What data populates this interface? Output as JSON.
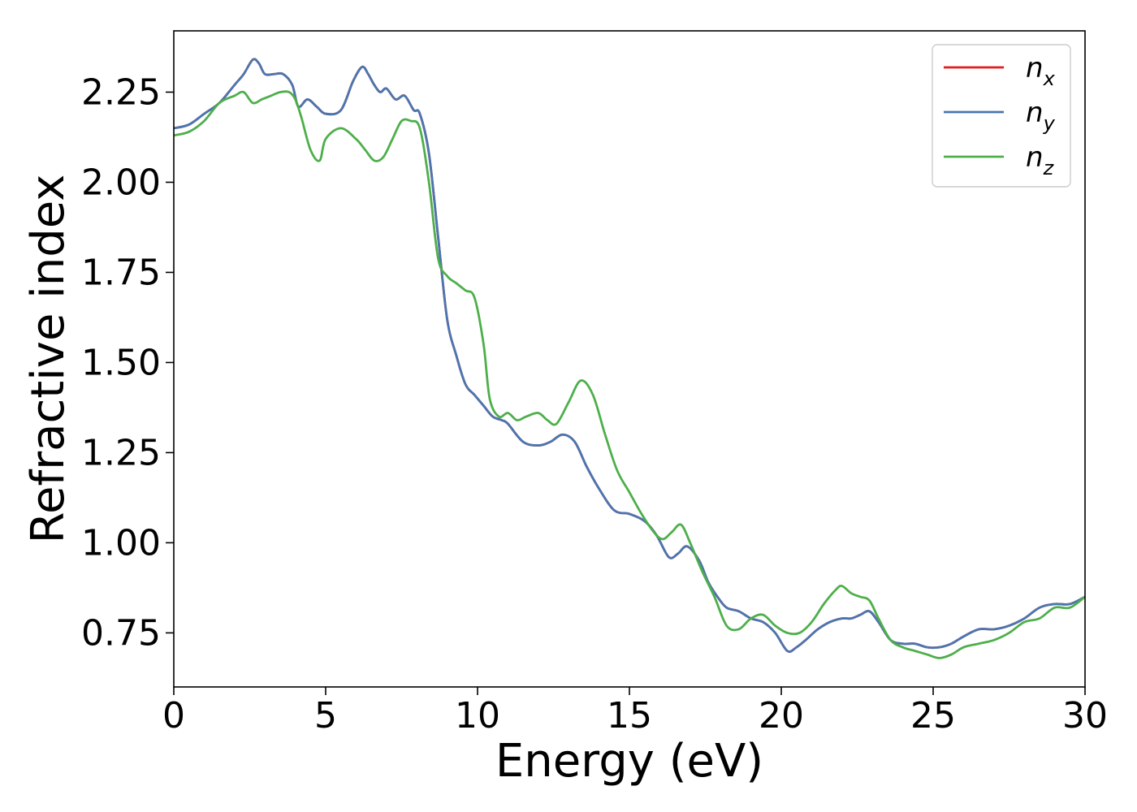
{
  "chart_data": {
    "type": "line",
    "title": "",
    "xlabel": "Energy (eV)",
    "ylabel": "Refractive index",
    "xlim": [
      0,
      30
    ],
    "ylim": [
      0.6,
      2.42
    ],
    "xticks": [
      0,
      5,
      10,
      15,
      20,
      25,
      30
    ],
    "xtick_labels": [
      "0",
      "5",
      "10",
      "15",
      "20",
      "25",
      "30"
    ],
    "yticks": [
      0.75,
      1.0,
      1.25,
      1.5,
      1.75,
      2.0,
      2.25
    ],
    "ytick_labels": [
      "0.75",
      "1.00",
      "1.25",
      "1.50",
      "1.75",
      "2.00",
      "2.25"
    ],
    "grid": false,
    "legend_position": "top-right",
    "series": [
      {
        "name": "n_x",
        "legend_base": "n",
        "legend_sub": "x",
        "color": "#e41a1c",
        "x": [
          0,
          0.5,
          1.0,
          1.5,
          2.0,
          2.3,
          2.6,
          2.8,
          3.0,
          3.3,
          3.6,
          3.9,
          4.1,
          4.4,
          4.7,
          5.0,
          5.5,
          5.9,
          6.2,
          6.4,
          6.6,
          6.8,
          7.0,
          7.3,
          7.6,
          7.9,
          8.1,
          8.4,
          8.7,
          9.0,
          9.3,
          9.6,
          9.9,
          10.2,
          10.5,
          10.8,
          11.0,
          11.5,
          12.0,
          12.4,
          12.8,
          13.2,
          13.6,
          14.0,
          14.5,
          15.0,
          15.5,
          15.9,
          16.3,
          16.6,
          16.9,
          17.3,
          17.6,
          17.9,
          18.2,
          18.6,
          19.0,
          19.4,
          19.8,
          20.2,
          20.5,
          20.8,
          21.2,
          21.6,
          22.0,
          22.3,
          22.6,
          22.9,
          23.2,
          23.6,
          24.0,
          24.4,
          24.8,
          25.2,
          25.6,
          26.0,
          26.5,
          27.0,
          27.5,
          28.0,
          28.5,
          29.0,
          29.5,
          30.0
        ],
        "y": [
          2.15,
          2.16,
          2.19,
          2.22,
          2.27,
          2.3,
          2.34,
          2.33,
          2.3,
          2.3,
          2.3,
          2.27,
          2.21,
          2.23,
          2.21,
          2.19,
          2.2,
          2.28,
          2.32,
          2.3,
          2.27,
          2.25,
          2.26,
          2.23,
          2.24,
          2.2,
          2.19,
          2.08,
          1.85,
          1.62,
          1.52,
          1.44,
          1.41,
          1.38,
          1.35,
          1.34,
          1.33,
          1.28,
          1.27,
          1.28,
          1.3,
          1.28,
          1.21,
          1.15,
          1.09,
          1.08,
          1.06,
          1.02,
          0.96,
          0.97,
          0.99,
          0.95,
          0.89,
          0.85,
          0.82,
          0.81,
          0.79,
          0.78,
          0.75,
          0.7,
          0.71,
          0.73,
          0.76,
          0.78,
          0.79,
          0.79,
          0.8,
          0.81,
          0.78,
          0.73,
          0.72,
          0.72,
          0.71,
          0.71,
          0.72,
          0.74,
          0.76,
          0.76,
          0.77,
          0.79,
          0.82,
          0.83,
          0.83,
          0.85
        ]
      },
      {
        "name": "n_y",
        "legend_base": "n",
        "legend_sub": "y",
        "color": "#4a76b0",
        "x": [
          0,
          0.5,
          1.0,
          1.5,
          2.0,
          2.3,
          2.6,
          2.8,
          3.0,
          3.3,
          3.6,
          3.9,
          4.1,
          4.4,
          4.7,
          5.0,
          5.5,
          5.9,
          6.2,
          6.4,
          6.6,
          6.8,
          7.0,
          7.3,
          7.6,
          7.9,
          8.1,
          8.4,
          8.7,
          9.0,
          9.3,
          9.6,
          9.9,
          10.2,
          10.5,
          10.8,
          11.0,
          11.5,
          12.0,
          12.4,
          12.8,
          13.2,
          13.6,
          14.0,
          14.5,
          15.0,
          15.5,
          15.9,
          16.3,
          16.6,
          16.9,
          17.3,
          17.6,
          17.9,
          18.2,
          18.6,
          19.0,
          19.4,
          19.8,
          20.2,
          20.5,
          20.8,
          21.2,
          21.6,
          22.0,
          22.3,
          22.6,
          22.9,
          23.2,
          23.6,
          24.0,
          24.4,
          24.8,
          25.2,
          25.6,
          26.0,
          26.5,
          27.0,
          27.5,
          28.0,
          28.5,
          29.0,
          29.5,
          30.0
        ],
        "y": [
          2.15,
          2.16,
          2.19,
          2.22,
          2.27,
          2.3,
          2.34,
          2.33,
          2.3,
          2.3,
          2.3,
          2.27,
          2.21,
          2.23,
          2.21,
          2.19,
          2.2,
          2.28,
          2.32,
          2.3,
          2.27,
          2.25,
          2.26,
          2.23,
          2.24,
          2.2,
          2.19,
          2.08,
          1.85,
          1.62,
          1.52,
          1.44,
          1.41,
          1.38,
          1.35,
          1.34,
          1.33,
          1.28,
          1.27,
          1.28,
          1.3,
          1.28,
          1.21,
          1.15,
          1.09,
          1.08,
          1.06,
          1.02,
          0.96,
          0.97,
          0.99,
          0.95,
          0.89,
          0.85,
          0.82,
          0.81,
          0.79,
          0.78,
          0.75,
          0.7,
          0.71,
          0.73,
          0.76,
          0.78,
          0.79,
          0.79,
          0.8,
          0.81,
          0.78,
          0.73,
          0.72,
          0.72,
          0.71,
          0.71,
          0.72,
          0.74,
          0.76,
          0.76,
          0.77,
          0.79,
          0.82,
          0.83,
          0.83,
          0.85
        ]
      },
      {
        "name": "n_z",
        "legend_base": "n",
        "legend_sub": "z",
        "color": "#4daf4a",
        "x": [
          0,
          0.5,
          1.0,
          1.5,
          2.0,
          2.3,
          2.6,
          2.9,
          3.2,
          3.5,
          3.8,
          4.0,
          4.2,
          4.5,
          4.8,
          5.0,
          5.5,
          6.0,
          6.3,
          6.6,
          6.9,
          7.2,
          7.5,
          7.8,
          8.1,
          8.4,
          8.7,
          9.0,
          9.3,
          9.6,
          9.9,
          10.2,
          10.4,
          10.7,
          11.0,
          11.3,
          11.6,
          12.0,
          12.3,
          12.6,
          13.0,
          13.4,
          13.8,
          14.2,
          14.6,
          15.0,
          15.4,
          15.8,
          16.1,
          16.4,
          16.7,
          17.0,
          17.4,
          17.8,
          18.2,
          18.6,
          19.0,
          19.4,
          19.8,
          20.2,
          20.6,
          21.0,
          21.4,
          21.8,
          22.0,
          22.3,
          22.6,
          22.9,
          23.2,
          23.6,
          24.0,
          24.4,
          24.8,
          25.2,
          25.6,
          26.0,
          26.5,
          27.0,
          27.5,
          28.0,
          28.5,
          29.0,
          29.5,
          30.0
        ],
        "y": [
          2.13,
          2.14,
          2.17,
          2.22,
          2.24,
          2.25,
          2.22,
          2.23,
          2.24,
          2.25,
          2.25,
          2.23,
          2.18,
          2.09,
          2.06,
          2.12,
          2.15,
          2.12,
          2.09,
          2.06,
          2.07,
          2.12,
          2.17,
          2.17,
          2.15,
          2.0,
          1.79,
          1.74,
          1.72,
          1.7,
          1.68,
          1.55,
          1.4,
          1.35,
          1.36,
          1.34,
          1.35,
          1.36,
          1.34,
          1.33,
          1.39,
          1.45,
          1.41,
          1.3,
          1.2,
          1.14,
          1.08,
          1.03,
          1.01,
          1.03,
          1.05,
          1.0,
          0.92,
          0.85,
          0.77,
          0.76,
          0.79,
          0.8,
          0.77,
          0.75,
          0.75,
          0.78,
          0.83,
          0.87,
          0.88,
          0.86,
          0.85,
          0.84,
          0.79,
          0.73,
          0.71,
          0.7,
          0.69,
          0.68,
          0.69,
          0.71,
          0.72,
          0.73,
          0.75,
          0.78,
          0.79,
          0.82,
          0.82,
          0.85
        ]
      }
    ]
  }
}
